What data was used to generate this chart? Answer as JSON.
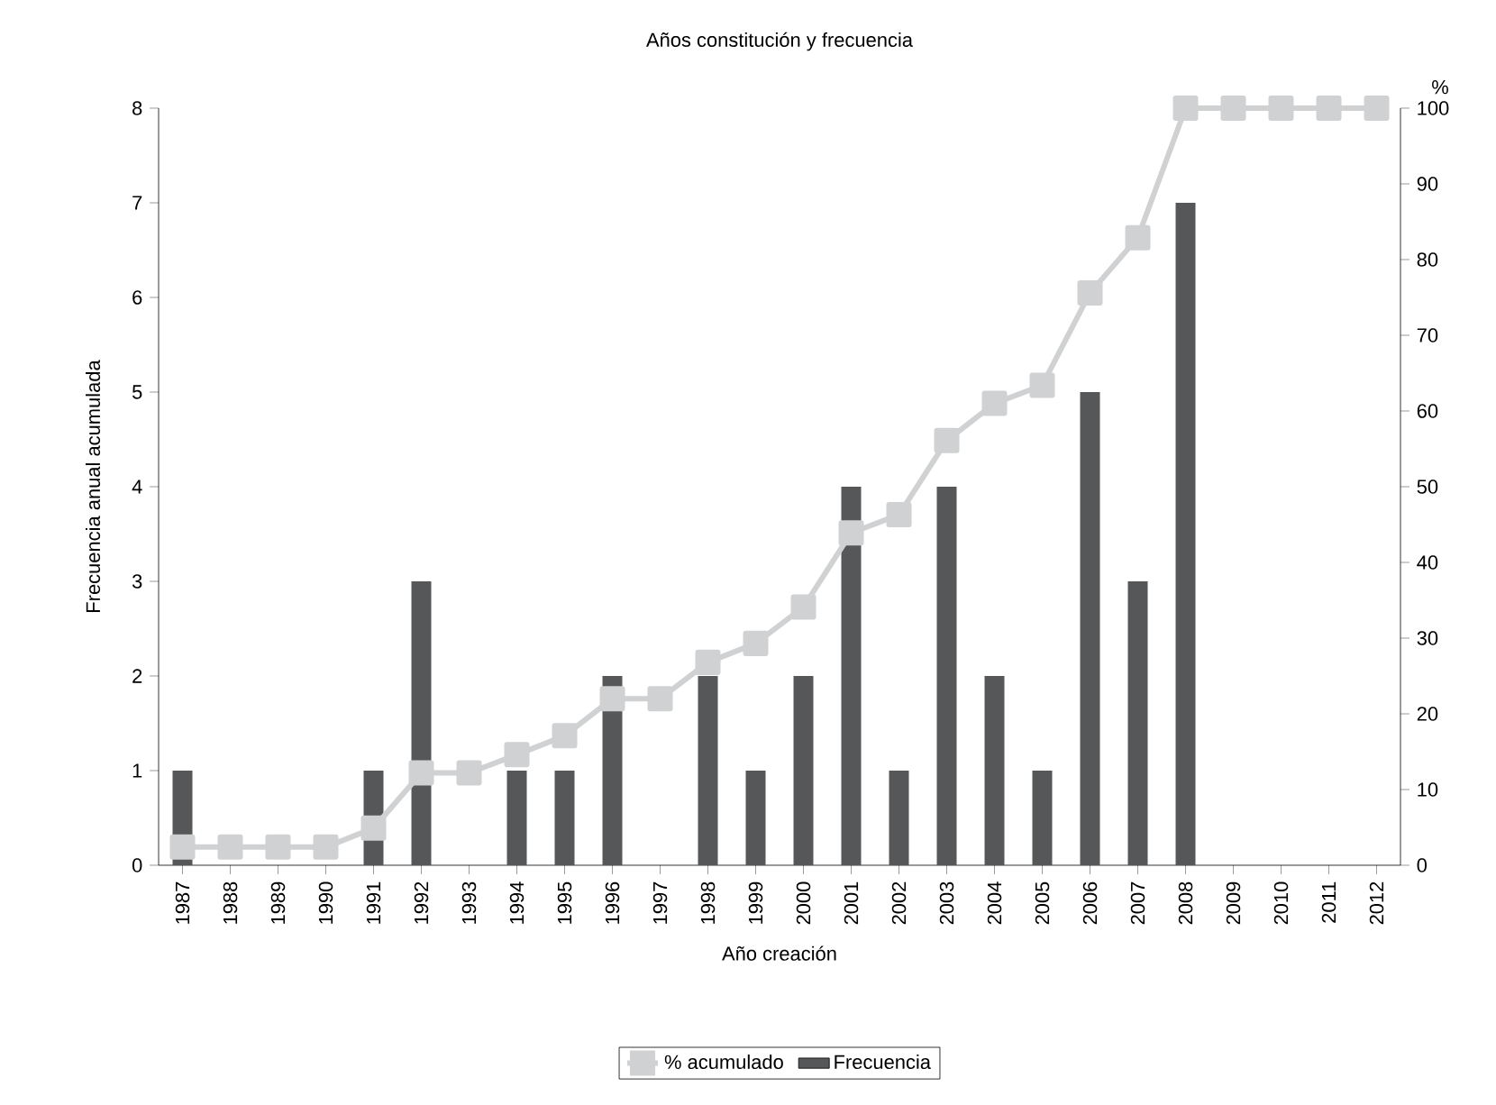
{
  "chart_data": {
    "type": "bar",
    "title": "Años constitución y frecuencia",
    "xlabel": "Año creación",
    "ylabel": "Frecuencia anual acumulada",
    "y2label": "%",
    "categories": [
      "1987",
      "1988",
      "1989",
      "1990",
      "1991",
      "1992",
      "1993",
      "1994",
      "1995",
      "1996",
      "1997",
      "1998",
      "1999",
      "2000",
      "2001",
      "2002",
      "2003",
      "2004",
      "2005",
      "2006",
      "2007",
      "2008",
      "2009",
      "2010",
      "2011",
      "2012"
    ],
    "series": [
      {
        "name": "Frecuencia",
        "color": "#555759",
        "values": [
          1,
          0,
          0,
          0,
          1,
          3,
          0,
          1,
          1,
          2,
          0,
          2,
          1,
          2,
          4,
          1,
          4,
          2,
          1,
          5,
          3,
          7,
          0,
          0,
          0,
          0
        ]
      },
      {
        "name": "% acumulado",
        "type": "line",
        "axis": "y2",
        "color": "#d0d1d2",
        "marker": "square",
        "values": [
          2.4,
          2.4,
          2.4,
          2.4,
          4.9,
          12.2,
          12.2,
          14.6,
          17.1,
          22,
          22,
          26.8,
          29.3,
          34.1,
          43.9,
          46.3,
          56.1,
          61,
          63.4,
          75.6,
          82.9,
          100,
          100,
          100,
          100,
          100
        ]
      }
    ],
    "ylim": [
      0,
      8
    ],
    "yticks": [
      0,
      1,
      2,
      3,
      4,
      5,
      6,
      7,
      8
    ],
    "y2lim": [
      0,
      100
    ],
    "y2ticks": [
      0,
      10,
      20,
      30,
      40,
      50,
      60,
      70,
      80,
      90,
      100
    ],
    "grid": false,
    "legend": "bottom"
  }
}
